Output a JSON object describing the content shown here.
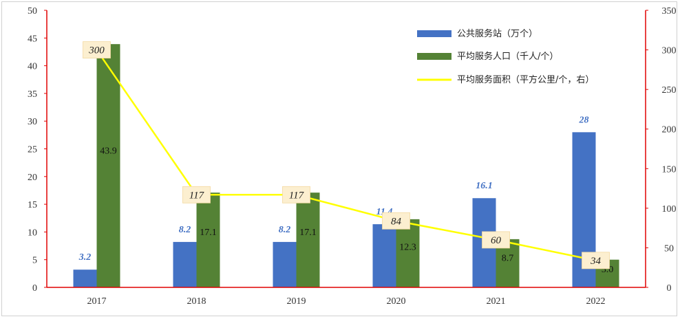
{
  "chart_data": {
    "type": "bar",
    "categories": [
      "2017",
      "2018",
      "2019",
      "2020",
      "2021",
      "2022"
    ],
    "series": [
      {
        "name": "公共服务站（万个）",
        "type": "bar",
        "axis": "left",
        "color": "#4472c4",
        "values": [
          3.2,
          8.2,
          8.2,
          11.4,
          16.1,
          28
        ],
        "labels": [
          "3.2",
          "8.2",
          "8.2",
          "11.4",
          "16.1",
          "28"
        ]
      },
      {
        "name": "平均服务人口（千人/个）",
        "type": "bar",
        "axis": "left",
        "color": "#548235",
        "values": [
          43.9,
          17.1,
          17.1,
          12.3,
          8.7,
          5.0
        ],
        "labels": [
          "43.9",
          "17.1",
          "17.1",
          "12.3",
          "8.7",
          "5.0"
        ]
      },
      {
        "name": "平均服务面积（平方公里/个，右）",
        "type": "line",
        "axis": "right",
        "color": "#ffff00",
        "values": [
          300,
          117,
          117,
          84,
          60,
          34
        ],
        "labels": [
          "300",
          "117",
          "117",
          "84",
          "60",
          "34"
        ]
      }
    ],
    "ylim": [
      0,
      50
    ],
    "yticks": [
      "0",
      "5",
      "10",
      "15",
      "20",
      "25",
      "30",
      "35",
      "40",
      "45",
      "50"
    ],
    "y2lim": [
      0,
      350
    ],
    "y2ticks": [
      "0",
      "50",
      "100",
      "150",
      "200",
      "250",
      "300",
      "350"
    ],
    "axis_color": "#e00000",
    "label_box_color": "#fcefd0",
    "legend_position": "top-right",
    "grid": false
  }
}
